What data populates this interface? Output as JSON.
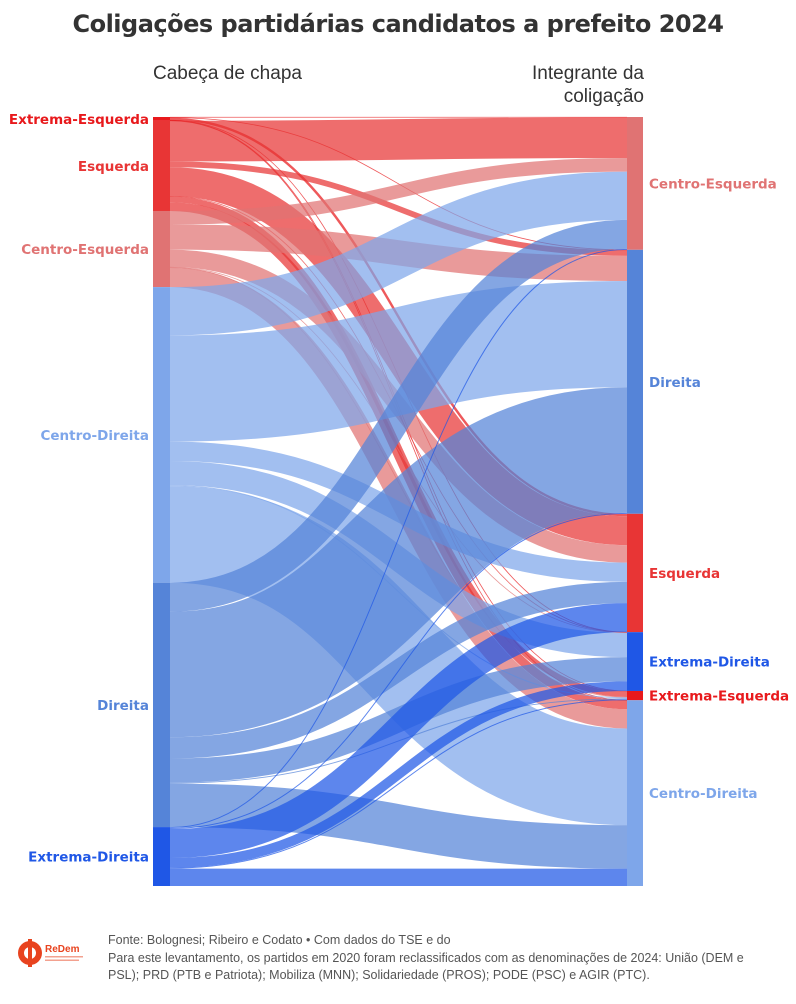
{
  "title": "Coligações partidárias candidatos a prefeito 2024",
  "left_header": "Cabeça de chapa",
  "right_header": "Integrante da coligação",
  "footer": {
    "source": "Fonte: Bolognesi; Ribeiro e Codato • Com dados do TSE e do",
    "note": "Para este levantamento, os partidos em 2020 foram reclassificados com as denominações de 2024: União (DEM e PSL); PRD (PTB e Patriota); Mobiliza (MNN); Solidariedade (PROS); PODE (PSC) e AGIR (PTC)."
  },
  "logo": {
    "text": "ReDem"
  },
  "chart_data": {
    "type": "sankey",
    "colors": {
      "Extrema-Esquerda": "#e8191c",
      "Esquerda": "#e83535",
      "Centro-Esquerda": "#e07373",
      "Centro-Direita": "#7ea6ea",
      "Direita": "#5584d8",
      "Extrema-Direita": "#1f57e6"
    },
    "sources": [
      "Extrema-Esquerda",
      "Esquerda",
      "Centro-Esquerda",
      "Centro-Direita",
      "Direita",
      "Extrema-Direita"
    ],
    "targets": [
      "Centro-Esquerda",
      "Direita",
      "Esquerda",
      "Extrema-Direita",
      "Extrema-Esquerda",
      "Centro-Direita"
    ],
    "links": [
      {
        "source": "Extrema-Esquerda",
        "target": "Centro-Esquerda",
        "value": 0.5
      },
      {
        "source": "Extrema-Esquerda",
        "target": "Direita",
        "value": 0.3
      },
      {
        "source": "Extrema-Esquerda",
        "target": "Esquerda",
        "value": 2.5
      },
      {
        "source": "Extrema-Esquerda",
        "target": "Extrema-Direita",
        "value": 0.1
      },
      {
        "source": "Extrema-Esquerda",
        "target": "Extrema-Esquerda",
        "value": 0.3
      },
      {
        "source": "Extrema-Esquerda",
        "target": "Centro-Direita",
        "value": 0.3
      },
      {
        "source": "Esquerda",
        "target": "Centro-Esquerda",
        "value": 42
      },
      {
        "source": "Esquerda",
        "target": "Direita",
        "value": 6
      },
      {
        "source": "Esquerda",
        "target": "Esquerda",
        "value": 30
      },
      {
        "source": "Esquerda",
        "target": "Extrema-Direita",
        "value": 0.3
      },
      {
        "source": "Esquerda",
        "target": "Extrema-Esquerda",
        "value": 6
      },
      {
        "source": "Esquerda",
        "target": "Centro-Direita",
        "value": 9
      },
      {
        "source": "Centro-Esquerda",
        "target": "Centro-Esquerda",
        "value": 14
      },
      {
        "source": "Centro-Esquerda",
        "target": "Direita",
        "value": 26
      },
      {
        "source": "Centro-Esquerda",
        "target": "Esquerda",
        "value": 18
      },
      {
        "source": "Centro-Esquerda",
        "target": "Extrema-Direita",
        "value": 0.5
      },
      {
        "source": "Centro-Esquerda",
        "target": "Extrema-Esquerda",
        "value": 0.3
      },
      {
        "source": "Centro-Esquerda",
        "target": "Centro-Direita",
        "value": 20
      },
      {
        "source": "Centro-Direita",
        "target": "Centro-Esquerda",
        "value": 50
      },
      {
        "source": "Centro-Direita",
        "target": "Direita",
        "value": 110
      },
      {
        "source": "Centro-Direita",
        "target": "Esquerda",
        "value": 20
      },
      {
        "source": "Centro-Direita",
        "target": "Extrema-Direita",
        "value": 25
      },
      {
        "source": "Centro-Direita",
        "target": "Extrema-Esquerda",
        "value": 1
      },
      {
        "source": "Centro-Direita",
        "target": "Centro-Direita",
        "value": 100
      },
      {
        "source": "Direita",
        "target": "Centro-Esquerda",
        "value": 30
      },
      {
        "source": "Direita",
        "target": "Direita",
        "value": 130
      },
      {
        "source": "Direita",
        "target": "Esquerda",
        "value": 22
      },
      {
        "source": "Direita",
        "target": "Extrema-Direita",
        "value": 25
      },
      {
        "source": "Direita",
        "target": "Extrema-Esquerda",
        "value": 1
      },
      {
        "source": "Direita",
        "target": "Centro-Direita",
        "value": 45
      },
      {
        "source": "Extrema-Direita",
        "target": "Centro-Esquerda",
        "value": 1
      },
      {
        "source": "Extrema-Direita",
        "target": "Direita",
        "value": 1
      },
      {
        "source": "Extrema-Direita",
        "target": "Esquerda",
        "value": 30
      },
      {
        "source": "Extrema-Direita",
        "target": "Extrema-Direita",
        "value": 10
      },
      {
        "source": "Extrema-Direita",
        "target": "Extrema-Esquerda",
        "value": 1
      },
      {
        "source": "Extrema-Direita",
        "target": "Centro-Direita",
        "value": 18
      }
    ]
  }
}
